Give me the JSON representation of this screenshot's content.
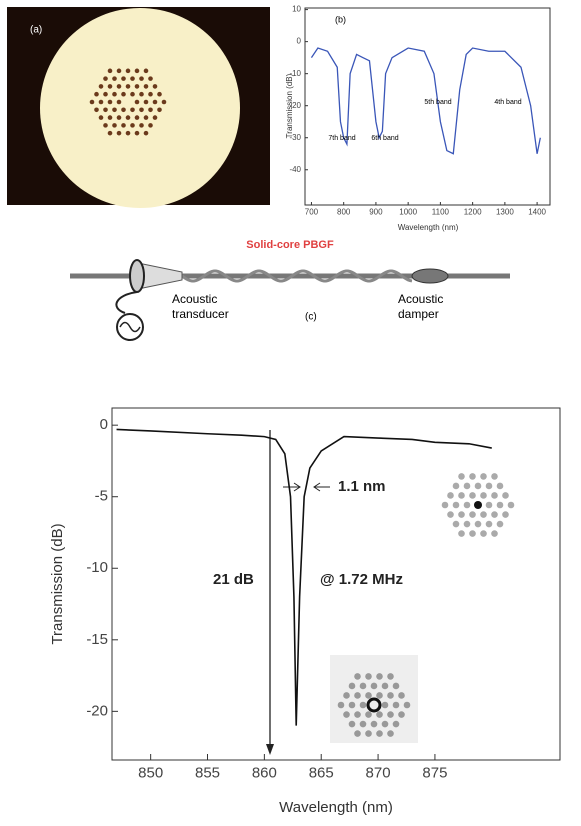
{
  "panel_a": {
    "label": "(a)"
  },
  "panel_c": {
    "fiber": "Solid-core PBGF",
    "transducer": [
      "Acoustic",
      "transducer"
    ],
    "label": "(c)",
    "damper": [
      "Acoustic",
      "damper"
    ]
  },
  "chart_data": [
    {
      "type": "line",
      "label": "(b)",
      "xlabel": "Wavelength (nm)",
      "ylabel": "Transmission (dB)",
      "x": [
        700,
        720,
        750,
        780,
        790,
        800,
        810,
        820,
        840,
        860,
        880,
        900,
        910,
        920,
        930,
        950,
        1000,
        1050,
        1080,
        1100,
        1120,
        1140,
        1160,
        1180,
        1200,
        1250,
        1300,
        1350,
        1380,
        1400,
        1410
      ],
      "values": [
        -5,
        -2,
        -3,
        -8,
        -25,
        -30,
        -32,
        -10,
        -4,
        -5,
        -6,
        -25,
        -30,
        -28,
        -10,
        -5,
        -2,
        -3,
        -10,
        -25,
        -34,
        -35,
        -15,
        -4,
        -2,
        -3,
        -3,
        -8,
        -20,
        -35,
        -30
      ],
      "color": "#3a56b8",
      "xlim": [
        680,
        1440
      ],
      "xticks": [
        700,
        800,
        900,
        1000,
        1100,
        1200,
        1300,
        1400
      ],
      "ylim": [
        -51,
        10.5
      ],
      "yticks": [
        10,
        0,
        -10,
        -20,
        -30,
        -40
      ],
      "annotations": [
        "7th band",
        "6th band",
        "5th band",
        "4th band"
      ]
    },
    {
      "type": "line",
      "xlabel": "Wavelength (nm)",
      "ylabel": "Transmission (dB)",
      "x": [
        847,
        850,
        855,
        858,
        860,
        861,
        861.8,
        862.3,
        862.6,
        862.8,
        863.1,
        863.5,
        864,
        865,
        867,
        870,
        873,
        875,
        878,
        880
      ],
      "values": [
        -0.3,
        -0.4,
        -0.6,
        -0.7,
        -0.8,
        -1.0,
        -2,
        -5,
        -12,
        -21,
        -12,
        -5,
        -3,
        -1.8,
        -0.8,
        -0.9,
        -1.0,
        -1.2,
        -1.3,
        -1.6
      ],
      "color": "#111111",
      "xlim": [
        846.6,
        886
      ],
      "xticks": [
        850,
        855,
        860,
        865,
        870,
        875
      ],
      "ylim": [
        -23.4,
        1.2
      ],
      "yticks": [
        0,
        -5,
        -10,
        -15,
        -20
      ],
      "annotations": [
        "1.1 nm",
        "21 dB",
        "@ 1.72 MHz"
      ]
    }
  ]
}
